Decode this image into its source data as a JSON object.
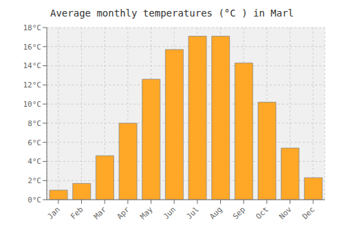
{
  "chart_data": {
    "type": "bar",
    "title": "Average monthly temperatures (°C ) in Marl",
    "categories": [
      "Jan",
      "Feb",
      "Mar",
      "Apr",
      "May",
      "Jun",
      "Jul",
      "Aug",
      "Sep",
      "Oct",
      "Nov",
      "Dec"
    ],
    "values": [
      1.0,
      1.7,
      4.6,
      8.0,
      12.6,
      15.7,
      17.1,
      17.1,
      14.3,
      10.2,
      5.4,
      2.3
    ],
    "color": "#FFA726",
    "ylim": [
      0,
      18
    ],
    "yticks": [
      {
        "value": 0,
        "label": "0°C"
      },
      {
        "value": 2,
        "label": "2°C"
      },
      {
        "value": 4,
        "label": "4°C"
      },
      {
        "value": 6,
        "label": "6°C"
      },
      {
        "value": 8,
        "label": "8°C"
      },
      {
        "value": 10,
        "label": "10°C"
      },
      {
        "value": 12,
        "label": "12°C"
      },
      {
        "value": 14,
        "label": "14°C"
      },
      {
        "value": 16,
        "label": "16°C"
      },
      {
        "value": 18,
        "label": "18°C"
      }
    ],
    "grid": true
  }
}
